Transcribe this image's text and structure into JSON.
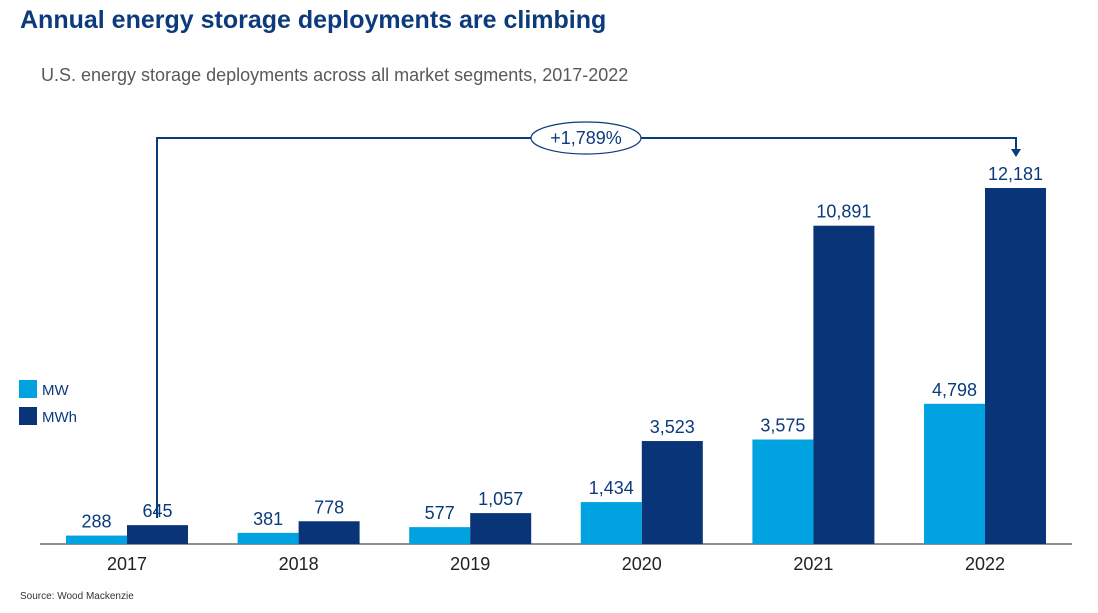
{
  "chart_data": {
    "type": "bar",
    "title": "Annual energy storage deployments are climbing",
    "subtitle": "U.S. energy storage deployments across all market segments, 2017-2022",
    "categories": [
      "2017",
      "2018",
      "2019",
      "2020",
      "2021",
      "2022"
    ],
    "series": [
      {
        "name": "MW",
        "color": "#00a3e0",
        "values": [
          288,
          381,
          577,
          1434,
          3575,
          4798
        ],
        "labels": [
          "288",
          "381",
          "577",
          "1,434",
          "3,575",
          "4,798"
        ]
      },
      {
        "name": "MWh",
        "color": "#0a3478",
        "values": [
          645,
          778,
          1057,
          3523,
          10891,
          12181
        ],
        "labels": [
          "645",
          "778",
          "1,057",
          "3,523",
          "10,891",
          "12,181"
        ]
      }
    ],
    "annotation": {
      "text": "+1,789%",
      "from": "2017",
      "to": "2022"
    },
    "legend": "left",
    "grid": false,
    "xlabel": "",
    "ylabel": "",
    "source": "Source: Wood Mackenzie"
  }
}
